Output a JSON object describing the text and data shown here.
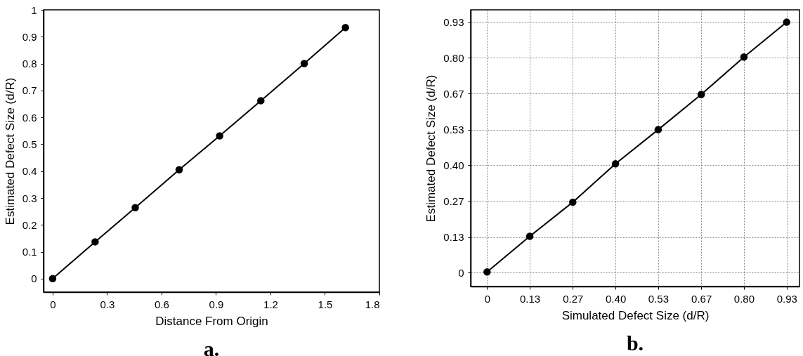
{
  "chart_data": [
    {
      "type": "line",
      "xlabel": "Distance From Origin",
      "ylabel": "Estimated Defect Size (d/R)",
      "annotations": [
        "a."
      ],
      "x": [
        0,
        0.234,
        0.455,
        0.697,
        0.92,
        1.147,
        1.386,
        1.613
      ],
      "series": [
        {
          "color": "#000000",
          "values": [
            0,
            0.137,
            0.264,
            0.405,
            0.531,
            0.662,
            0.8,
            0.934
          ]
        }
      ],
      "xlim": [
        -0.05,
        1.8
      ],
      "xticks": [
        0,
        0.3,
        0.6,
        0.9,
        1.2,
        1.5,
        1.8
      ],
      "ylim": [
        -0.05,
        1
      ],
      "yticks": [
        0,
        0.1,
        0.2,
        0.3,
        0.4,
        0.5,
        0.6,
        0.7,
        0.8,
        0.9,
        1
      ],
      "grid": false,
      "marker": "circle",
      "line_style": "solid"
    },
    {
      "type": "line",
      "xlabel": "Simulated Defect Size (d/R)",
      "ylabel": "Estimated Defect Size (d/R)",
      "annotations": [
        "b."
      ],
      "x": [
        0,
        0.133,
        0.267,
        0.4,
        0.533,
        0.667,
        0.8,
        0.933
      ],
      "series": [
        {
          "color": "#000000",
          "values": [
            0.003,
            0.136,
            0.263,
            0.406,
            0.533,
            0.664,
            0.803,
            0.933
          ]
        }
      ],
      "xlim": [
        -0.051,
        0.973
      ],
      "xticks": [
        0,
        {
          "value": 0.133,
          "label": "0.13"
        },
        {
          "value": 0.267,
          "label": "0.27"
        },
        {
          "value": 0.4,
          "label": "0.40"
        },
        {
          "value": 0.533,
          "label": "0.53"
        },
        {
          "value": 0.667,
          "label": "0.67"
        },
        {
          "value": 0.8,
          "label": "0.80"
        },
        {
          "value": 0.933,
          "label": "0.93"
        }
      ],
      "ylim": [
        -0.051,
        0.979
      ],
      "yticks": [
        0,
        {
          "value": 0.133,
          "label": "0.13"
        },
        {
          "value": 0.267,
          "label": "0.27"
        },
        {
          "value": 0.4,
          "label": "0.40"
        },
        {
          "value": 0.533,
          "label": "0.53"
        },
        {
          "value": 0.667,
          "label": "0.67"
        },
        {
          "value": 0.8,
          "label": "0.80"
        },
        {
          "value": 0.933,
          "label": "0.93"
        }
      ],
      "grid": true,
      "marker": "circle",
      "line_style": "solid"
    }
  ]
}
